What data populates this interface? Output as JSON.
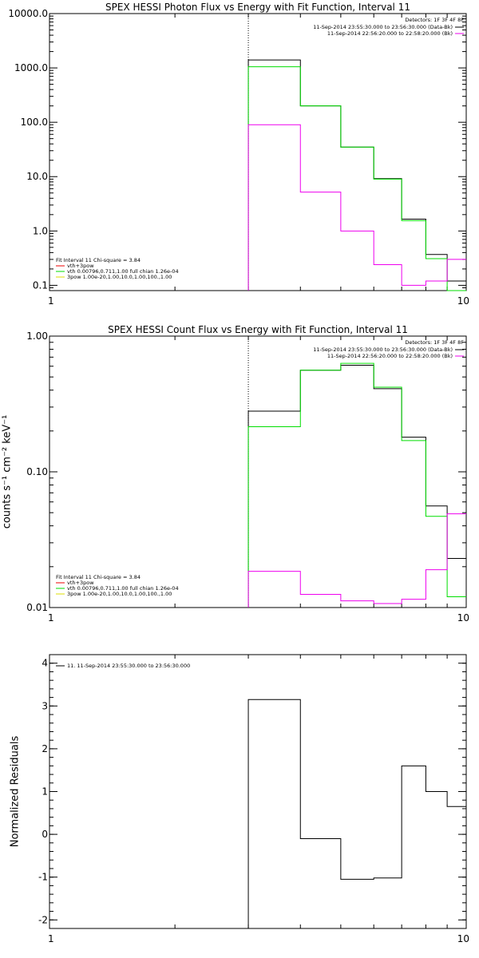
{
  "chart_data": [
    {
      "type": "line",
      "step": true,
      "title": "SPEX HESSI Photon Flux vs Energy with Fit Function, Interval 11",
      "xlabel": "",
      "ylabel": "",
      "xscale": "log",
      "yscale": "log",
      "xlim": [
        1,
        10
      ],
      "ylim": [
        0.08,
        10000
      ],
      "yticks": [
        0.1,
        1,
        10,
        100,
        1000,
        10000
      ],
      "ytick_labels": [
        "0.1",
        "1.0",
        "10.0",
        "100.0",
        "1000.0",
        "10000.0"
      ],
      "xticks": [
        1,
        10
      ],
      "xtick_labels": [
        "1",
        "10"
      ],
      "vline_x": 3,
      "bin_edges": [
        3,
        4,
        5,
        6,
        7,
        8,
        9,
        10
      ],
      "series": [
        {
          "name": "",
          "color": "#000000",
          "values": [
            1400,
            200,
            35,
            9.2,
            1.65,
            0.37,
            0.12
          ]
        },
        {
          "name": "",
          "color": "#00dd00",
          "values": [
            1050,
            200,
            35,
            9.0,
            1.55,
            0.31,
            0.08
          ]
        },
        {
          "name": "",
          "color": "#ee00ee",
          "values": [
            90,
            5.2,
            1.0,
            0.24,
            0.1,
            0.12,
            0.3
          ]
        }
      ],
      "legend_tr": {
        "header": "Detectors: 1F 3F 4F 8F",
        "entries": [
          {
            "text": "11-Sep-2014 23:55:30.000 to 23:56:30.000 (Data-Bk)",
            "color": "#000000"
          },
          {
            "text": "11-Sep-2014 22:56:20.000 to 22:58:20.000 (Bk)",
            "color": "#ee00ee"
          }
        ]
      },
      "legend_bl": {
        "header": "Fit Interval 11    Chi-square = 3.84",
        "entries": [
          {
            "text": "vth+3pow",
            "color": "#ee0000"
          },
          {
            "text": "vth 0.00796,0.711,1.00  full chian 1.26e-04",
            "color": "#00dd00"
          },
          {
            "text": "3pow 1.00e-20,1.00,10.0,1.00,100.,1.00",
            "color": "#dddd00"
          }
        ]
      }
    },
    {
      "type": "line",
      "step": true,
      "title": "SPEX HESSI Count Flux vs Energy with Fit Function, Interval 11",
      "xlabel": "",
      "ylabel": "counts s⁻¹ cm⁻² keV⁻¹",
      "xscale": "log",
      "yscale": "log",
      "xlim": [
        1,
        10
      ],
      "ylim": [
        0.01,
        1.0
      ],
      "yticks": [
        0.01,
        0.1,
        1.0
      ],
      "ytick_labels": [
        "0.01",
        "0.10",
        "1.00"
      ],
      "xticks": [
        1,
        10
      ],
      "xtick_labels": [
        "1",
        "10"
      ],
      "vline_x": 3,
      "bin_edges": [
        3,
        4,
        5,
        6,
        7,
        8,
        9,
        10
      ],
      "series": [
        {
          "name": "",
          "color": "#000000",
          "values": [
            0.28,
            0.56,
            0.61,
            0.41,
            0.18,
            0.056,
            0.023
          ]
        },
        {
          "name": "",
          "color": "#00dd00",
          "values": [
            0.215,
            0.56,
            0.63,
            0.42,
            0.17,
            0.047,
            0.012
          ]
        },
        {
          "name": "",
          "color": "#ee00ee",
          "values": [
            0.0185,
            0.0125,
            0.0112,
            0.0107,
            0.0115,
            0.019,
            0.049
          ]
        }
      ],
      "legend_tr": {
        "header": "Detectors: 1F 3F 4F 8F",
        "entries": [
          {
            "text": "11-Sep-2014 23:55:30.000 to 23:56:30.000 (Data-Bk)",
            "color": "#000000"
          },
          {
            "text": "11-Sep-2014 22:56:20.000 to 22:58:20.000 (Bk)",
            "color": "#ee00ee"
          }
        ]
      },
      "legend_bl": {
        "header": "Fit Interval 11    Chi-square = 3.84",
        "entries": [
          {
            "text": "vth+3pow",
            "color": "#ee0000"
          },
          {
            "text": "vth 0.00796,0.711,1.00  full chian 1.26e-04",
            "color": "#00dd00"
          },
          {
            "text": "3pow 1.00e-20,1.00,10.0,1.00,100.,1.00",
            "color": "#dddd00"
          }
        ]
      }
    },
    {
      "type": "line",
      "step": true,
      "title": "",
      "xlabel": "",
      "ylabel": "Normalized Residuals",
      "xscale": "log",
      "yscale": "linear",
      "xlim": [
        1,
        10
      ],
      "ylim": [
        -2.2,
        4.2
      ],
      "yticks": [
        -2,
        -1,
        0,
        1,
        2,
        3,
        4
      ],
      "ytick_labels": [
        "-2",
        "-1",
        "0",
        "1",
        "2",
        "3",
        "4"
      ],
      "xticks": [
        1,
        10
      ],
      "xtick_labels": [
        "1",
        "10"
      ],
      "bin_edges": [
        3,
        4,
        5,
        6,
        7,
        8,
        9,
        10
      ],
      "series": [
        {
          "name": "11. 11-Sep-2014 23:55:30.000 to 23:56:30.000",
          "color": "#000000",
          "values": [
            3.15,
            -0.1,
            -1.05,
            -1.02,
            1.6,
            1.0,
            0.65
          ]
        }
      ]
    }
  ]
}
